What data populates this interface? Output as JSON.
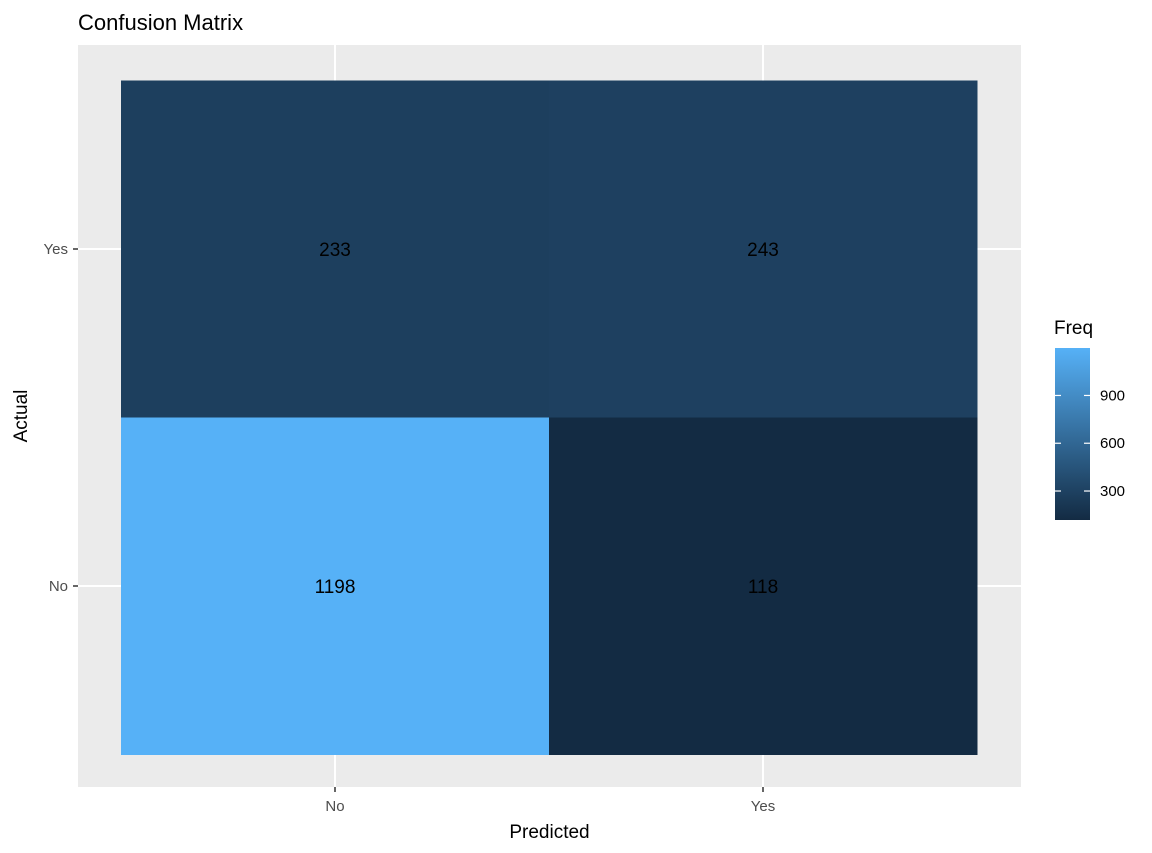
{
  "chart_data": {
    "type": "heatmap",
    "title": "Confusion Matrix",
    "xlabel": "Predicted",
    "ylabel": "Actual",
    "x_categories": [
      "No",
      "Yes"
    ],
    "y_categories": [
      "No",
      "Yes"
    ],
    "cells": [
      {
        "x": "No",
        "y": "Yes",
        "value": 233
      },
      {
        "x": "Yes",
        "y": "Yes",
        "value": 243
      },
      {
        "x": "No",
        "y": "No",
        "value": 1198
      },
      {
        "x": "Yes",
        "y": "No",
        "value": 118
      }
    ],
    "legend": {
      "title": "Freq",
      "ticks": [
        300,
        600,
        900
      ],
      "low_color": "#132B43",
      "high_color": "#56B1F7"
    },
    "grid": true,
    "legend_position": "right"
  }
}
